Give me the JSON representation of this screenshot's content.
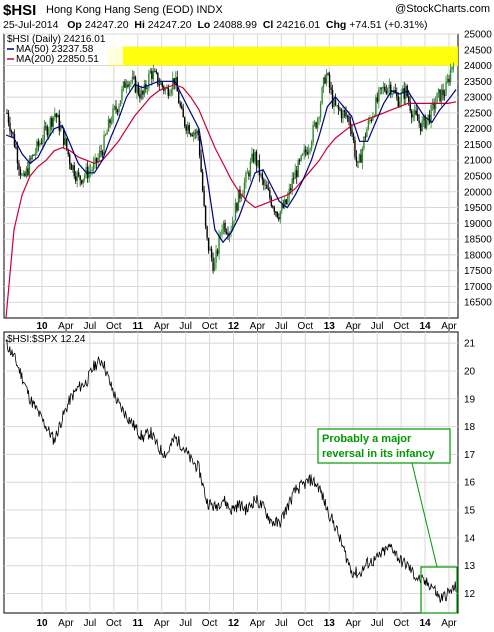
{
  "header": {
    "symbol": "$HSI",
    "name": "Hong Kong Hang Seng (EOD)  INDX",
    "brand": "@StockCharts.com",
    "date": "25-Jul-2014",
    "open_label": "Op",
    "open": "24247.20",
    "high_label": "Hi",
    "high": "24247.20",
    "low_label": "Lo",
    "low": "24088.99",
    "close_label": "Cl",
    "close": "24216.01",
    "chg_label": "Chg",
    "chg": "+74.51 (+0.31%)"
  },
  "colors": {
    "up_candle": "#2e8b2e",
    "down_candle": "#000000",
    "ma50": "#000080",
    "ma200": "#cc0033",
    "resistance_band": "#ffff00",
    "annotation": "#009900",
    "grid": "#d8d8d8"
  },
  "chart_data": [
    {
      "type": "candlestick",
      "title": "$HSI (Daily) 24216.01",
      "legend": [
        {
          "name": "MA(50) 23237.58",
          "color": "#000080"
        },
        {
          "name": "MA(200) 22850.51",
          "color": "#cc0033"
        }
      ],
      "ylim": [
        16000,
        25000
      ],
      "y_ticks": [
        16500,
        17000,
        17500,
        18000,
        18500,
        19000,
        19500,
        20000,
        20500,
        21000,
        21500,
        22000,
        22500,
        23000,
        23500,
        24000,
        24500,
        25000
      ],
      "x_ticks": [
        "10",
        "Apr",
        "Jul",
        "Oct",
        "11",
        "Apr",
        "Jul",
        "Oct",
        "12",
        "Apr",
        "Jul",
        "Oct",
        "13",
        "Apr",
        "Jul",
        "Oct",
        "14",
        "Apr",
        "Jul"
      ],
      "resistance_zone": [
        24000,
        24600
      ],
      "x_months": [
        0,
        1,
        2,
        3,
        4,
        5,
        6,
        7,
        8,
        9,
        10,
        11,
        12,
        13,
        14,
        15,
        16,
        17,
        18,
        19,
        20,
        21,
        22,
        23,
        24,
        25,
        26,
        27,
        28,
        29,
        30,
        31,
        32,
        33,
        34,
        35,
        36,
        37,
        38,
        39,
        40,
        41,
        42,
        43,
        44,
        45,
        46,
        47,
        48,
        49,
        50,
        51,
        52,
        53,
        54,
        55,
        56
      ],
      "close": [
        22500,
        21500,
        20300,
        21000,
        21500,
        22000,
        22500,
        21800,
        20900,
        20400,
        20600,
        20800,
        21400,
        22300,
        22800,
        23600,
        23400,
        23000,
        23800,
        23500,
        23200,
        23600,
        22300,
        22000,
        21800,
        18500,
        17600,
        19000,
        18800,
        19800,
        20400,
        21200,
        20300,
        19800,
        19300,
        19600,
        20500,
        21000,
        21600,
        22400,
        23800,
        22700,
        22500,
        22300,
        20700,
        21900,
        22600,
        23200,
        23400,
        22900,
        23200,
        22400,
        22100,
        22400,
        23000,
        23200,
        24216
      ],
      "ma50": [
        21800,
        21700,
        21200,
        20900,
        21100,
        21600,
        22000,
        22100,
        21500,
        20900,
        20600,
        20600,
        21000,
        21700,
        22300,
        23000,
        23400,
        23300,
        23400,
        23500,
        23500,
        23500,
        23000,
        22500,
        22000,
        20500,
        18800,
        18400,
        18700,
        19200,
        19900,
        20600,
        20700,
        20200,
        19700,
        19500,
        19900,
        20400,
        21000,
        21800,
        22700,
        23000,
        22700,
        22400,
        21600,
        21600,
        22200,
        22800,
        23200,
        23100,
        23200,
        22800,
        22400,
        22200,
        22600,
        22900,
        23237
      ],
      "ma200": [
        16000,
        18800,
        19900,
        20500,
        20800,
        21000,
        21300,
        21400,
        21300,
        21100,
        21000,
        20900,
        21000,
        21300,
        21600,
        22000,
        22400,
        22700,
        23000,
        23200,
        23300,
        23400,
        23300,
        23000,
        22600,
        22000,
        21400,
        20900,
        20400,
        20000,
        19700,
        19500,
        19600,
        19700,
        19800,
        19900,
        20100,
        20400,
        20700,
        21000,
        21400,
        21700,
        21900,
        22100,
        22200,
        22300,
        22400,
        22500,
        22600,
        22700,
        22800,
        22800,
        22800,
        22800,
        22800,
        22800,
        22850
      ]
    },
    {
      "type": "line",
      "title": "$HSI:$SPX 12.24",
      "ylim": [
        11.3,
        21.4
      ],
      "y_ticks": [
        12,
        13,
        14,
        15,
        16,
        17,
        18,
        19,
        20,
        21
      ],
      "x_ticks": [
        "10",
        "Apr",
        "Jul",
        "Oct",
        "11",
        "Apr",
        "Jul",
        "Oct",
        "12",
        "Apr",
        "Jul",
        "Oct",
        "13",
        "Apr",
        "Jul",
        "Oct",
        "14",
        "Apr",
        "Jul"
      ],
      "x_months": [
        0,
        1,
        2,
        3,
        4,
        5,
        6,
        7,
        8,
        9,
        10,
        11,
        12,
        13,
        14,
        15,
        16,
        17,
        18,
        19,
        20,
        21,
        22,
        23,
        24,
        25,
        26,
        27,
        28,
        29,
        30,
        31,
        32,
        33,
        34,
        35,
        36,
        37,
        38,
        39,
        40,
        41,
        42,
        43,
        44,
        45,
        46,
        47,
        48,
        49,
        50,
        51,
        52,
        53,
        54,
        55,
        56
      ],
      "values": [
        21.0,
        20.5,
        19.8,
        19.0,
        18.5,
        18.0,
        17.5,
        18.3,
        19.0,
        19.4,
        19.6,
        20.2,
        20.4,
        19.5,
        18.8,
        18.4,
        18.0,
        17.6,
        17.8,
        17.2,
        17.0,
        17.6,
        17.3,
        16.8,
        16.5,
        15.3,
        15.1,
        15.4,
        15.0,
        15.2,
        15.0,
        15.4,
        15.1,
        14.6,
        14.5,
        15.1,
        15.7,
        15.9,
        16.1,
        15.8,
        15.0,
        14.4,
        13.6,
        12.8,
        12.7,
        13.1,
        13.2,
        13.5,
        13.7,
        13.2,
        13.0,
        12.6,
        12.4,
        12.3,
        11.8,
        12.0,
        12.24
      ],
      "annotation": "Probably a major reversal in its infancy"
    }
  ]
}
